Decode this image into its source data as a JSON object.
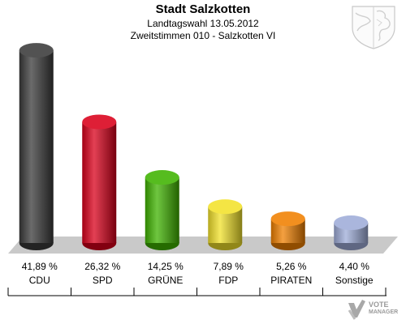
{
  "header": {
    "title": "Stadt Salzkotten",
    "subtitle1": "Landtagswahl 13.05.2012",
    "subtitle2": "Zweitstimmen 010 - Salzkotten VI"
  },
  "logo": {
    "line1": "VOTE",
    "line2": "MANAGER"
  },
  "chart_data": {
    "type": "bar",
    "categories": [
      "CDU",
      "SPD",
      "GRÜNE",
      "FDP",
      "PIRATEN",
      "Sonstige"
    ],
    "values": [
      41.89,
      26.32,
      14.25,
      7.89,
      5.26,
      4.4
    ],
    "value_labels": [
      "41,89 %",
      "26,32 %",
      "14,25 %",
      "7,89 %",
      "5,26 %",
      "4,40 %"
    ],
    "colors": [
      "#3a3a3a",
      "#d9001b",
      "#3fb300",
      "#f2e12a",
      "#f08000",
      "#9eacd8"
    ],
    "title": "Stadt Salzkotten",
    "ylim": [
      0,
      45
    ],
    "grid": false,
    "legend": "none"
  }
}
